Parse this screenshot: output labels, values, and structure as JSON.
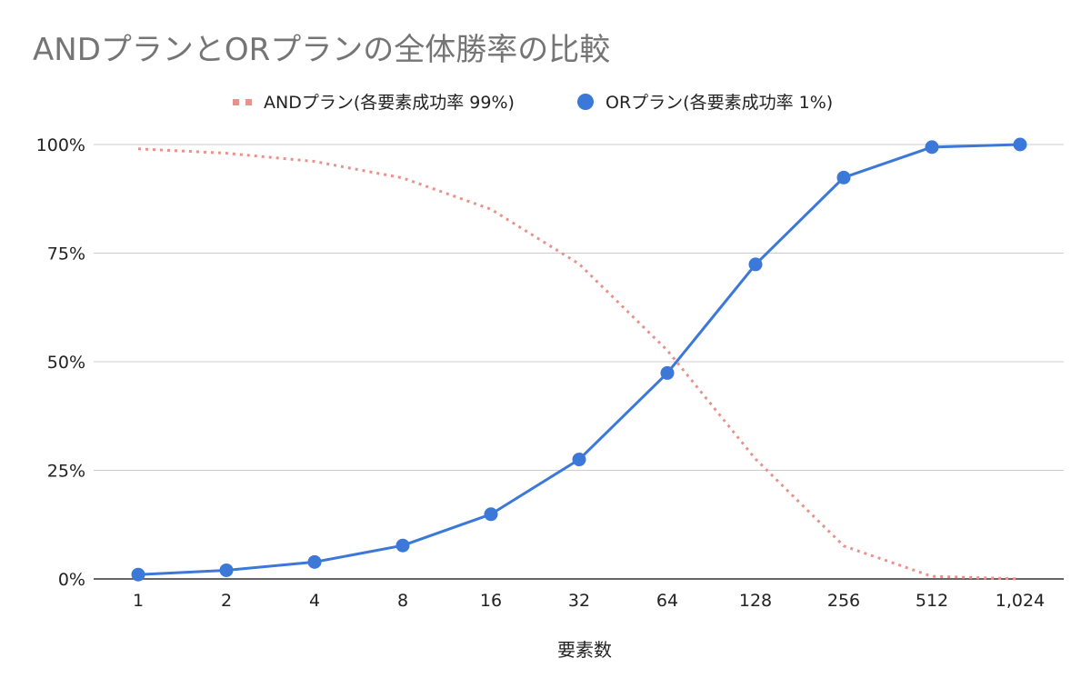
{
  "chart_data": {
    "type": "line",
    "title": "ANDプランとORプランの全体勝率の比較",
    "xlabel": "要素数",
    "ylabel": "",
    "categories": [
      "1",
      "2",
      "4",
      "8",
      "16",
      "32",
      "64",
      "128",
      "256",
      "512",
      "1,024"
    ],
    "y_ticks": [
      "0%",
      "25%",
      "50%",
      "75%",
      "100%"
    ],
    "ylim": [
      0,
      100
    ],
    "grid": true,
    "legend_position": "top",
    "series": [
      {
        "name": "ANDプラン(各要素成功率 99%)",
        "values": [
          99.0,
          98.0,
          96.1,
          92.3,
          85.1,
          72.5,
          52.6,
          27.6,
          7.6,
          0.6,
          0.0
        ],
        "color": "#e8928e",
        "style": "dotted"
      },
      {
        "name": "ORプラン(各要素成功率 1%)",
        "values": [
          1.0,
          2.0,
          3.9,
          7.7,
          14.9,
          27.5,
          47.4,
          72.4,
          92.4,
          99.4,
          100.0
        ],
        "color": "#3b78d8",
        "style": "solid-markers"
      }
    ]
  }
}
